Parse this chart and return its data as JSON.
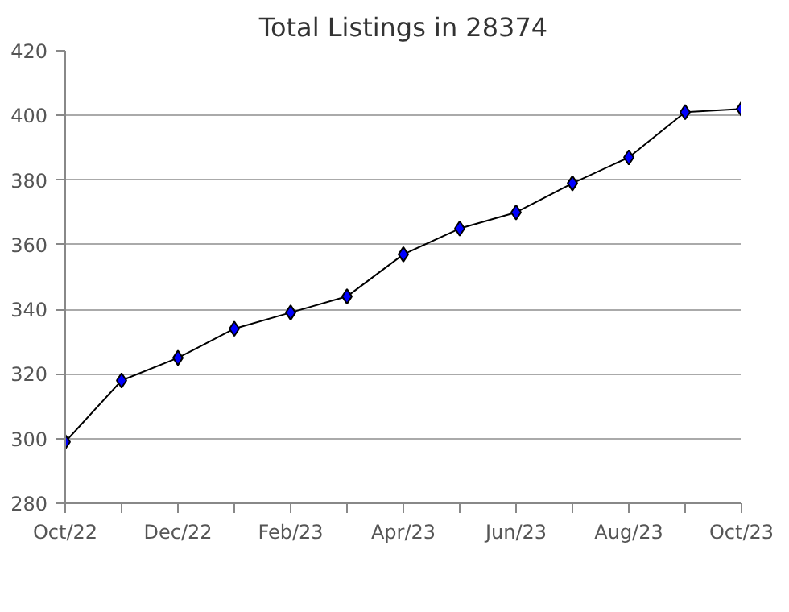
{
  "chart_data": {
    "type": "line",
    "title": "Total Listings in 28374",
    "categories": [
      "Oct/22",
      null,
      "Dec/22",
      null,
      "Feb/23",
      null,
      "Apr/23",
      null,
      "Jun/23",
      null,
      "Aug/23",
      null,
      "Oct/23"
    ],
    "series": [
      {
        "color": "#0000ff",
        "values": [
          299,
          318,
          325,
          334,
          339,
          344,
          357,
          365,
          370,
          379,
          387,
          401,
          402
        ]
      }
    ],
    "ylim": [
      280,
      420
    ],
    "yticks": [
      280,
      300,
      320,
      340,
      360,
      380,
      400,
      420
    ],
    "grid": "y",
    "marker": "diamond",
    "line_style": "solid"
  }
}
